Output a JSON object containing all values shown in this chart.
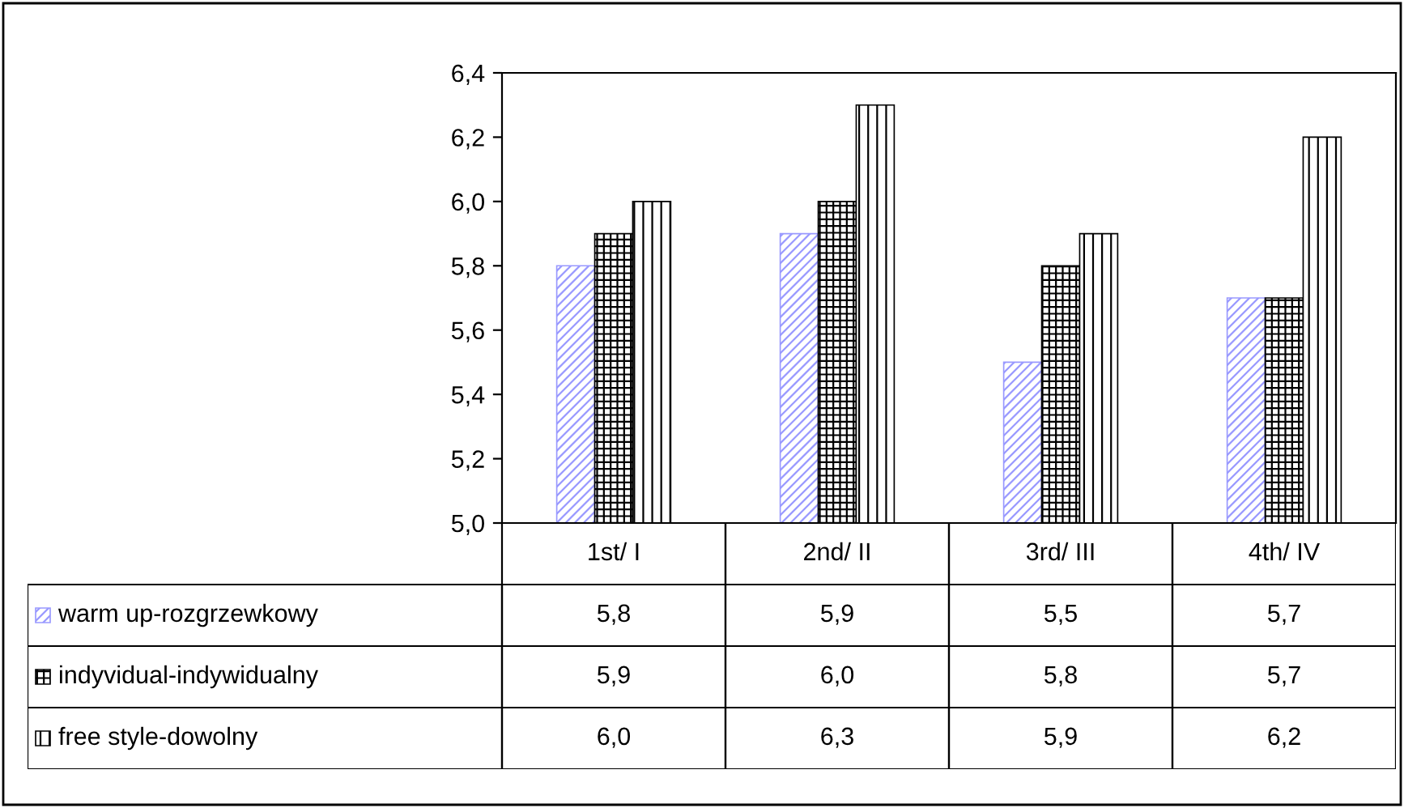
{
  "chart_data": {
    "type": "bar",
    "categories": [
      "1st/ I",
      "2nd/ II",
      "3rd/ III",
      "4th/ IV"
    ],
    "series": [
      {
        "name": "warm up-rozgrzewkowy",
        "color": "#9999ff",
        "values": [
          5.8,
          5.9,
          5.5,
          5.7
        ],
        "value_labels": [
          "5,8",
          "5,9",
          "5,5",
          "5,7"
        ]
      },
      {
        "name": "indyvidual-indywidualny",
        "color": "#000000",
        "values": [
          5.9,
          6.0,
          5.8,
          5.7
        ],
        "value_labels": [
          "5,9",
          "6,0",
          "5,8",
          "5,7"
        ]
      },
      {
        "name": "free style-dowolny",
        "color": "#000000",
        "values": [
          6.0,
          6.3,
          5.9,
          6.2
        ],
        "value_labels": [
          "6,0",
          "6,3",
          "5,9",
          "6,2"
        ]
      }
    ],
    "ylim": [
      5.0,
      6.4
    ],
    "yticks": [
      {
        "value": 5.0,
        "label": "5,0"
      },
      {
        "value": 5.2,
        "label": "5,2"
      },
      {
        "value": 5.4,
        "label": "5,4"
      },
      {
        "value": 5.6,
        "label": "5,6"
      },
      {
        "value": 5.8,
        "label": "5,8"
      },
      {
        "value": 6.0,
        "label": "6,0"
      },
      {
        "value": 6.2,
        "label": "6,2"
      },
      {
        "value": 6.4,
        "label": "6,4"
      }
    ],
    "grid": false,
    "legend": "bottom left"
  }
}
